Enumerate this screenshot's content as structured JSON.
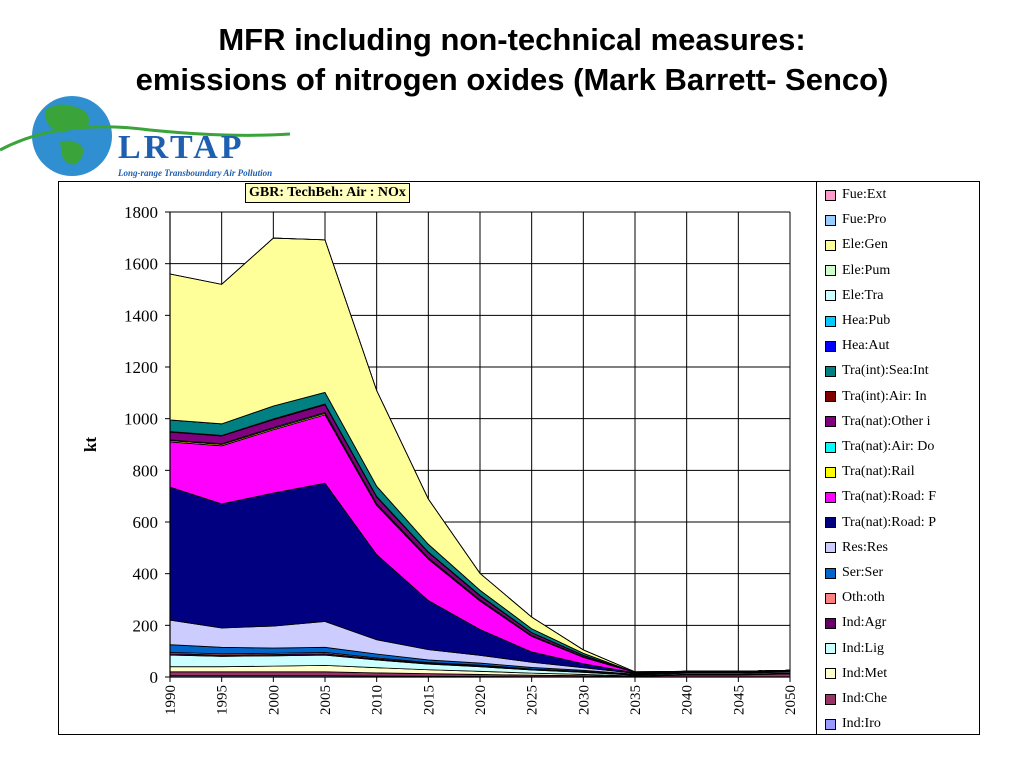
{
  "slide": {
    "title_line1": "MFR including non-technical measures:",
    "title_line2": "emissions of nitrogen oxides  (Mark Barrett- Senco)"
  },
  "logo": {
    "text": "LRTAP",
    "subtitle": "Long-range Transboundary Air Pollution",
    "colors": {
      "globe": "#2f8fd0",
      "land": "#3aa33a",
      "text": "#1f5fb0"
    }
  },
  "chart_data": {
    "type": "area",
    "stacked": true,
    "title": "GBR: TechBeh: Air : NOx",
    "xlabel": "",
    "ylabel": "kt",
    "x": [
      1990,
      1995,
      2000,
      2005,
      2010,
      2015,
      2020,
      2025,
      2030,
      2035,
      2040,
      2045,
      2050
    ],
    "ylim": [
      0,
      1800
    ],
    "yticks": [
      0,
      200,
      400,
      600,
      800,
      1000,
      1200,
      1400,
      1600,
      1800
    ],
    "grid": true,
    "legend_position": "right",
    "series": [
      {
        "name": "Ind:Iro",
        "color": "#9999ff",
        "values": [
          5,
          5,
          5,
          5,
          4,
          3,
          2,
          1,
          1,
          0,
          0,
          0,
          0
        ]
      },
      {
        "name": "Ind:Che",
        "color": "#993366",
        "values": [
          15,
          15,
          15,
          15,
          12,
          10,
          8,
          6,
          4,
          2,
          8,
          8,
          12
        ]
      },
      {
        "name": "Ind:Met",
        "color": "#ffffcc",
        "values": [
          20,
          20,
          22,
          25,
          20,
          15,
          12,
          8,
          5,
          2,
          3,
          3,
          3
        ]
      },
      {
        "name": "Ind:Lig",
        "color": "#ccffff",
        "values": [
          45,
          40,
          40,
          40,
          30,
          22,
          18,
          12,
          8,
          3,
          4,
          4,
          4
        ]
      },
      {
        "name": "Ind:Agr",
        "color": "#660066",
        "values": [
          5,
          5,
          5,
          5,
          4,
          3,
          3,
          2,
          2,
          1,
          1,
          1,
          1
        ]
      },
      {
        "name": "Oth:oth",
        "color": "#ff8080",
        "values": [
          5,
          5,
          5,
          5,
          4,
          3,
          3,
          2,
          2,
          1,
          1,
          1,
          1
        ]
      },
      {
        "name": "Ser:Ser",
        "color": "#0066cc",
        "values": [
          30,
          25,
          20,
          20,
          15,
          10,
          8,
          6,
          4,
          2,
          2,
          2,
          2
        ]
      },
      {
        "name": "Res:Res",
        "color": "#ccccff",
        "values": [
          95,
          75,
          85,
          100,
          55,
          40,
          30,
          20,
          10,
          3,
          3,
          3,
          3
        ]
      },
      {
        "name": "Tra(nat):Road: P",
        "color": "#000080",
        "values": [
          515,
          480,
          515,
          535,
          330,
          190,
          100,
          40,
          15,
          2,
          0,
          0,
          0
        ]
      },
      {
        "name": "Tra(nat):Road: F",
        "color": "#ff00ff",
        "values": [
          175,
          225,
          245,
          265,
          190,
          160,
          110,
          60,
          25,
          2,
          0,
          0,
          0
        ]
      },
      {
        "name": "Tra(nat):Rail",
        "color": "#ffff00",
        "values": [
          5,
          5,
          5,
          5,
          4,
          3,
          3,
          2,
          1,
          0,
          0,
          0,
          0
        ]
      },
      {
        "name": "Tra(nat):Air: Do",
        "color": "#00ffff",
        "values": [
          3,
          3,
          4,
          4,
          3,
          3,
          2,
          2,
          1,
          0,
          0,
          0,
          0
        ]
      },
      {
        "name": "Tra(nat):Other i",
        "color": "#800080",
        "values": [
          30,
          30,
          30,
          30,
          25,
          20,
          15,
          10,
          5,
          0,
          0,
          0,
          0
        ]
      },
      {
        "name": "Tra(int):Air: In",
        "color": "#800000",
        "values": [
          2,
          2,
          3,
          3,
          3,
          2,
          2,
          1,
          1,
          0,
          0,
          0,
          0
        ]
      },
      {
        "name": "Tra(int):Sea:Int",
        "color": "#008080",
        "values": [
          45,
          45,
          50,
          45,
          40,
          30,
          20,
          15,
          8,
          0,
          0,
          0,
          0
        ]
      },
      {
        "name": "Hea:Aut",
        "color": "#0000ff",
        "values": [
          0,
          0,
          0,
          0,
          0,
          0,
          0,
          0,
          0,
          0,
          0,
          0,
          0
        ]
      },
      {
        "name": "Hea:Pub",
        "color": "#00ccff",
        "values": [
          0,
          0,
          0,
          0,
          0,
          0,
          0,
          0,
          0,
          0,
          0,
          0,
          0
        ]
      },
      {
        "name": "Ele:Tra",
        "color": "#ccffff",
        "values": [
          0,
          0,
          0,
          0,
          0,
          0,
          0,
          0,
          0,
          0,
          0,
          0,
          0
        ]
      },
      {
        "name": "Ele:Pum",
        "color": "#ccffcc",
        "values": [
          0,
          0,
          0,
          0,
          0,
          0,
          0,
          0,
          0,
          0,
          0,
          0,
          0
        ]
      },
      {
        "name": "Ele:Gen",
        "color": "#ffff99",
        "values": [
          565,
          540,
          650,
          590,
          370,
          175,
          65,
          45,
          13,
          2,
          0,
          0,
          0
        ]
      },
      {
        "name": "Fue:Pro",
        "color": "#99ccff",
        "values": [
          0,
          0,
          0,
          0,
          0,
          0,
          0,
          0,
          0,
          0,
          0,
          0,
          0
        ]
      },
      {
        "name": "Fue:Ext",
        "color": "#ff99cc",
        "values": [
          0,
          0,
          0,
          0,
          0,
          0,
          0,
          0,
          0,
          0,
          0,
          0,
          0
        ]
      }
    ]
  }
}
